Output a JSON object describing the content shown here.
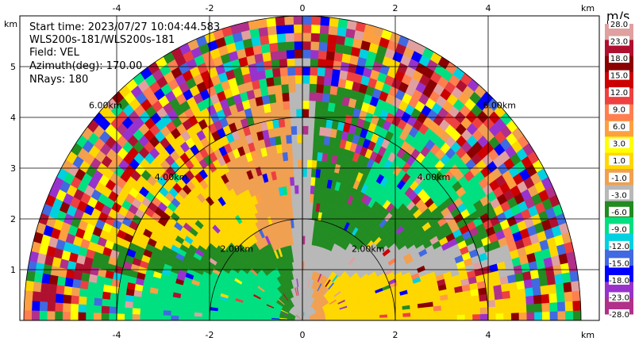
{
  "info": {
    "start_time": "Start time: 2023/07/27 10:04:44.583",
    "instrument": "WLS200s-181/WLS200s-181",
    "field": "Field: VEL",
    "azimuth": "Azimuth(deg): 170.00",
    "nrays": "NRays: 180"
  },
  "colorbar": {
    "unit": "m/s",
    "levels": [
      "28.0",
      "23.0",
      "18.0",
      "15.0",
      "12.0",
      "9.0",
      "6.0",
      "3.0",
      "1.0",
      "-1.0",
      "-3.0",
      "-6.0",
      "-9.0",
      "-12.0",
      "-15.0",
      "-18.0",
      "-23.0",
      "-28.0"
    ],
    "colors": [
      "#e0a0a0",
      "#b01030",
      "#8b0000",
      "#cc0000",
      "#ee4040",
      "#ff7f50",
      "#ffa040",
      "#ffff00",
      "#ffd700",
      "#f0a050",
      "#b8b8b8",
      "#228b22",
      "#00e080",
      "#00d0e0",
      "#4169e1",
      "#0000ff",
      "#9932cc",
      "#b0308a"
    ]
  },
  "chart_data": {
    "type": "heatmap",
    "title": "",
    "xlabel": "km",
    "ylabel": "km",
    "xlim": [
      -6.0,
      6.0
    ],
    "ylim": [
      0,
      6.0
    ],
    "xticks": [
      -4,
      -2,
      0,
      2,
      4
    ],
    "yticks": [
      1,
      2,
      3,
      4,
      5
    ],
    "x_unit_label": "km",
    "y_unit_label": "km",
    "max_range_km": 6.0,
    "range_rings_km": [
      2.0,
      4.0,
      6.0
    ],
    "ring_labels": [
      "2.00km",
      "4.00km",
      "6.00km"
    ],
    "grid": true,
    "colormap_unit": "m/s",
    "vmin": -28.0,
    "vmax": 28.0
  }
}
